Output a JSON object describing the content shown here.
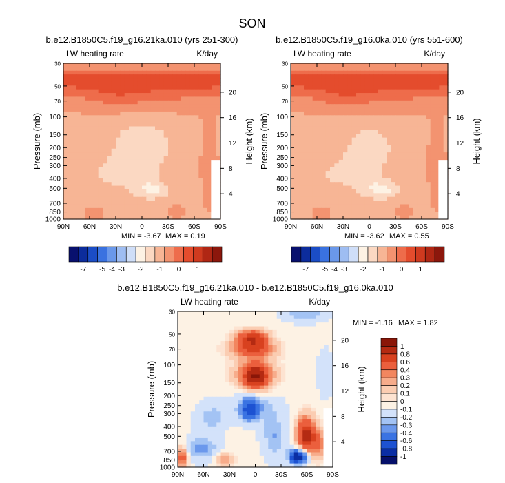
{
  "figure": {
    "title": "SON"
  },
  "colors": {
    "negative": [
      "#08106e",
      "#0c2c9c",
      "#1b4dc6",
      "#3a72e0",
      "#6a98ea",
      "#9ebdf2",
      "#cfdef8"
    ],
    "zero": "#fdf2e4",
    "positive": [
      "#fbd8c2",
      "#f7b595",
      "#f39370",
      "#ee6c4b",
      "#e44c2d",
      "#cf3a1f",
      "#b02714",
      "#8c170c"
    ],
    "diff_negative": [
      "#06106a",
      "#0a2ea4",
      "#1d52d2",
      "#3a73e2",
      "#6b98ec",
      "#a3c3f4",
      "#d3e2fa"
    ],
    "diff_positive": [
      "#fde3d1",
      "#fbcdb2",
      "#f7ac8b",
      "#f2865f",
      "#eb5f3d",
      "#d8411f",
      "#b42a12",
      "#8a1608"
    ]
  },
  "chart_data": [
    {
      "type": "heatmap",
      "title": "b.e12.B1850C5.f19_g16.21ka.010 (yrs 251-300)",
      "left_string": "LW heating rate",
      "right_string": "K/day",
      "x": [
        "90N",
        "60N",
        "30N",
        "0",
        "30S",
        "60S",
        "90S"
      ],
      "ylabel": "Pressure (mb)",
      "yticks": [
        "30",
        "50",
        "70",
        "100",
        "150",
        "200",
        "250",
        "300",
        "400",
        "500",
        "700",
        "850",
        "1000"
      ],
      "y2label": "Height (km)",
      "y2ticks": [
        "20",
        "16",
        "12",
        "8",
        "4"
      ],
      "min_label": "MIN = -3.67",
      "max_label": "MAX = 0.19",
      "min": -3.67,
      "max": 0.19,
      "colorbar": {
        "orientation": "horizontal",
        "tick_labels": [
          "-7",
          "-5",
          "-4",
          "-3",
          "-2",
          "-1",
          "0",
          "1"
        ]
      }
    },
    {
      "type": "heatmap",
      "title": "b.e12.B1850C5.f19_g16.0ka.010 (yrs 551-600)",
      "left_string": "LW heating rate",
      "right_string": "K/day",
      "x": [
        "90N",
        "60N",
        "30N",
        "0",
        "30S",
        "60S",
        "90S"
      ],
      "ylabel": "Pressure (mb)",
      "yticks": [
        "30",
        "50",
        "70",
        "100",
        "150",
        "200",
        "250",
        "300",
        "400",
        "500",
        "700",
        "850",
        "1000"
      ],
      "y2label": "Height (km)",
      "y2ticks": [
        "20",
        "16",
        "12",
        "8",
        "4"
      ],
      "min_label": "MIN = -3.62",
      "max_label": "MAX = 0.55",
      "min": -3.62,
      "max": 0.55,
      "colorbar": {
        "orientation": "horizontal",
        "tick_labels": [
          "-7",
          "-5",
          "-4",
          "-3",
          "-2",
          "-1",
          "0",
          "1"
        ]
      }
    },
    {
      "type": "heatmap",
      "title": "b.e12.B1850C5.f19_g16.21ka.010 - b.e12.B1850C5.f19_g16.0ka.010",
      "left_string": "LW heating rate",
      "right_string": "K/day",
      "x": [
        "90N",
        "60N",
        "30N",
        "0",
        "30S",
        "60S",
        "90S"
      ],
      "ylabel": "Pressure (mb)",
      "yticks": [
        "30",
        "50",
        "70",
        "100",
        "150",
        "200",
        "250",
        "300",
        "400",
        "500",
        "700",
        "850",
        "1000"
      ],
      "y2label": "Height (km)",
      "y2ticks": [
        "20",
        "16",
        "12",
        "8",
        "4"
      ],
      "min_label": "MIN = -1.16",
      "max_label": "MAX = 1.82",
      "min": -1.16,
      "max": 1.82,
      "colorbar": {
        "orientation": "vertical",
        "tick_labels": [
          "1",
          "0.8",
          "0.6",
          "0.4",
          "0.3",
          "0.2",
          "0.1",
          "0",
          "-0.1",
          "-0.2",
          "-0.3",
          "-0.4",
          "-0.6",
          "-0.8",
          "-1"
        ]
      }
    }
  ]
}
